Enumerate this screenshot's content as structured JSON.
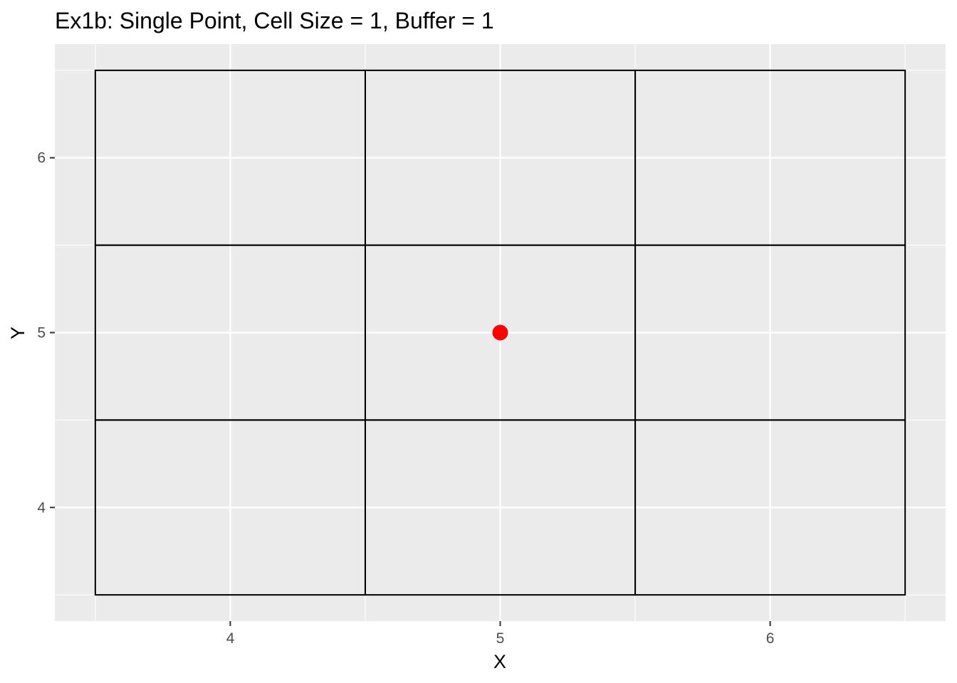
{
  "chart_data": {
    "type": "scatter",
    "title": "Ex1b: Single Point, Cell Size = 1, Buffer = 1",
    "xlabel": "X",
    "ylabel": "Y",
    "xlim": [
      3.35,
      6.65
    ],
    "ylim": [
      3.35,
      6.65
    ],
    "x_ticks": [
      4,
      5,
      6
    ],
    "y_ticks": [
      4,
      5,
      6
    ],
    "grid": true,
    "panel_background": "#EBEBEB",
    "grid_color": "#FFFFFF",
    "cells": {
      "x_edges": [
        3.5,
        4.5,
        5.5,
        6.5
      ],
      "y_edges": [
        3.5,
        4.5,
        5.5,
        6.5
      ],
      "stroke_color": "#000000"
    },
    "points": [
      {
        "x": 5,
        "y": 5,
        "color": "#FF0000"
      }
    ]
  }
}
